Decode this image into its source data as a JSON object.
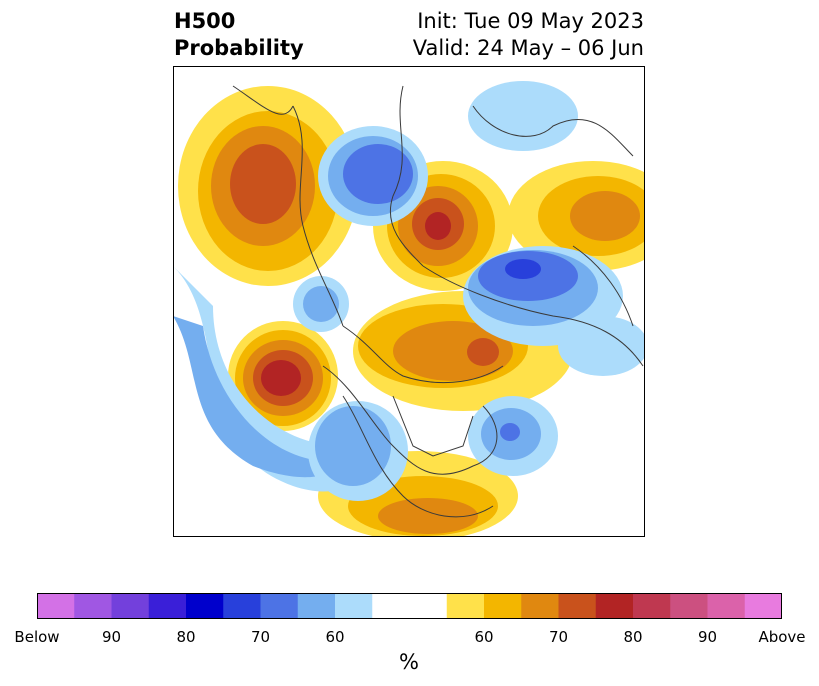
{
  "header": {
    "title_line1": "H500",
    "title_line2": "Probability",
    "init_text": "Init: Tue 09 May 2023",
    "valid_text": "Valid: 24 May – 06 Jun"
  },
  "colorbar": {
    "label": "%",
    "colors": [
      "#d371e6",
      "#a057e3",
      "#7340dc",
      "#3a1fd8",
      "#0000cc",
      "#2840db",
      "#4d73e5",
      "#74aeef",
      "#acdcfb",
      "#ffffff",
      "#ffffff",
      "#ffe14a",
      "#f3b600",
      "#e08810",
      "#c9521c",
      "#b22424",
      "#bf3850",
      "#cc5080",
      "#db62aa",
      "#e87bdf"
    ],
    "ticks": [
      {
        "label": "Below"
      },
      {
        "label": "90"
      },
      {
        "label": "80"
      },
      {
        "label": "70"
      },
      {
        "label": "60"
      },
      {
        "label": "60"
      },
      {
        "label": "70"
      },
      {
        "label": "80"
      },
      {
        "label": "90"
      },
      {
        "label": "Above"
      }
    ]
  },
  "map": {
    "projection": "north-polar-stereographic",
    "variable": "500 hPa height probability (below/above normal)",
    "features": [
      {
        "kind": "above",
        "region": "northeast Pacific / Gulf of Alaska",
        "peak": 80
      },
      {
        "kind": "above",
        "region": "central Canada / Hudson Bay",
        "peak": 70
      },
      {
        "kind": "above",
        "region": "southeastern United States",
        "peak": 70
      },
      {
        "kind": "above",
        "region": "Scandinavia / northwest Russia",
        "peak": 80
      },
      {
        "kind": "above",
        "region": "eastern Siberia / far east",
        "peak": 70
      },
      {
        "kind": "above",
        "region": "Arctic / Kara Sea",
        "peak": 70
      },
      {
        "kind": "below",
        "region": "western United States",
        "peak": 70
      },
      {
        "kind": "below",
        "region": "northwest Atlantic",
        "peak": 70
      },
      {
        "kind": "below",
        "region": "central Asia / Mongolia",
        "peak": 80
      },
      {
        "kind": "below",
        "region": "western Europe / Atlantic",
        "peak": 70
      },
      {
        "kind": "below",
        "region": "east Asia / Japan",
        "peak": 60
      },
      {
        "kind": "below",
        "region": "central North Pacific",
        "peak": 70
      }
    ]
  }
}
